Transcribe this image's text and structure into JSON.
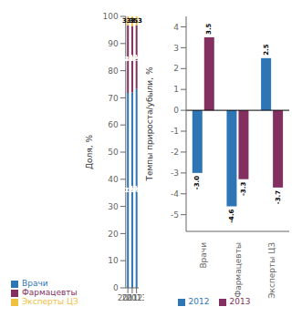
{
  "chart_data": [
    {
      "type": "bar",
      "stacked": true,
      "categories": [
        "2011",
        "2012",
        "2013"
      ],
      "ylabel": "Доля, %",
      "ylim": [
        0,
        100
      ],
      "yticks": [
        0,
        10,
        20,
        30,
        40,
        50,
        60,
        70,
        80,
        90,
        100
      ],
      "data_labels": true,
      "legend": "bottom",
      "series": [
        {
          "name": "Врачи",
          "color": "#2E75B6",
          "values": [
            71.8,
            72.0,
            73.3
          ],
          "value_labels": [
            "71.8",
            "72.0",
            "73.3"
          ]
        },
        {
          "name": "Фармацевты",
          "color": "#833060",
          "values": [
            24.9,
            24.5,
            23.4
          ]
        },
        {
          "name": "Эксперты ЦЗ",
          "color": "#F0C040",
          "values": [
            3.3,
            3.5,
            3.3
          ]
        }
      ]
    },
    {
      "type": "bar",
      "stacked": false,
      "categories": [
        "Врачи",
        "Фармацевты",
        "Эксперты ЦЗ"
      ],
      "ylabel": "Темпы прироста/убыли, %",
      "ylim": [
        -5.8,
        4.5
      ],
      "yticks": [
        -5,
        -4,
        -3,
        -2,
        -1,
        0,
        1,
        2,
        3,
        4
      ],
      "data_labels": true,
      "legend": "bottom",
      "series": [
        {
          "name": "2012",
          "color": "#2E75B6",
          "values": [
            -3.0,
            -4.6,
            2.5
          ],
          "value_labels": [
            "-3.0",
            "-4.6",
            "2.5"
          ]
        },
        {
          "name": "2013",
          "color": "#833060",
          "values": [
            3.5,
            -3.3,
            -3.7
          ]
        }
      ]
    }
  ]
}
